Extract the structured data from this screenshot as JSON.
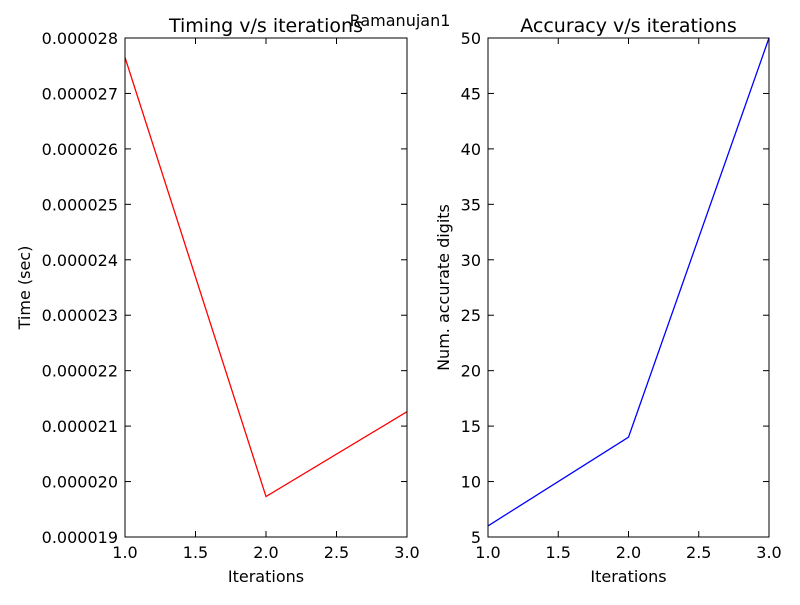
{
  "figure": {
    "suptitle": "Ramanujan1"
  },
  "chart_data": [
    {
      "type": "line",
      "title": "Timing v/s iterations",
      "xlabel": "Iterations",
      "ylabel": "Time (sec)",
      "xlim": [
        1.0,
        3.0
      ],
      "ylim": [
        1.9e-05,
        2.8e-05
      ],
      "x_ticks": [
        "1.0",
        "1.5",
        "2.0",
        "2.5",
        "3.0"
      ],
      "x_tick_values": [
        1.0,
        1.5,
        2.0,
        2.5,
        3.0
      ],
      "y_ticks": [
        "0.000019",
        "0.000020",
        "0.000021",
        "0.000022",
        "0.000023",
        "0.000024",
        "0.000025",
        "0.000026",
        "0.000027",
        "0.000028"
      ],
      "y_tick_values": [
        1.9e-05,
        2e-05,
        2.1e-05,
        2.2e-05,
        2.3e-05,
        2.4e-05,
        2.5e-05,
        2.6e-05,
        2.7e-05,
        2.8e-05
      ],
      "grid": false,
      "series": [
        {
          "color": "#ff0000",
          "x": [
            1,
            2,
            3
          ],
          "y": [
            2.765e-05,
            1.973e-05,
            2.126e-05
          ]
        }
      ]
    },
    {
      "type": "line",
      "title": "Accuracy v/s iterations",
      "xlabel": "Iterations",
      "ylabel": "Num. accurate digits",
      "xlim": [
        1.0,
        3.0
      ],
      "ylim": [
        5,
        50
      ],
      "x_ticks": [
        "1.0",
        "1.5",
        "2.0",
        "2.5",
        "3.0"
      ],
      "x_tick_values": [
        1.0,
        1.5,
        2.0,
        2.5,
        3.0
      ],
      "y_ticks": [
        "5",
        "10",
        "15",
        "20",
        "25",
        "30",
        "35",
        "40",
        "45",
        "50"
      ],
      "y_tick_values": [
        5,
        10,
        15,
        20,
        25,
        30,
        35,
        40,
        45,
        50
      ],
      "grid": false,
      "series": [
        {
          "color": "#0000ff",
          "x": [
            1,
            2,
            3
          ],
          "y": [
            6,
            14,
            50
          ]
        }
      ]
    }
  ]
}
